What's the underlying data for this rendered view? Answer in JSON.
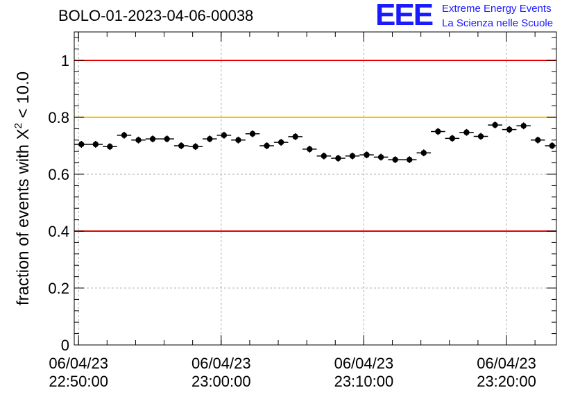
{
  "header": {
    "title": "BOLO-01-2023-04-06-00038"
  },
  "logo": {
    "mark": "EEE",
    "line1": "Extreme Energy Events",
    "line2": "La Scienza nelle Scuole"
  },
  "chart_data": {
    "type": "scatter",
    "ylabel_main": "fraction of events with X",
    "ylabel_sup": "2",
    "ylabel_tail": " < 10.0",
    "ylim": [
      0,
      1.1
    ],
    "xlim_minutes": [
      -0.3,
      33.5
    ],
    "yticks": [
      {
        "value": 0,
        "label": "0"
      },
      {
        "value": 0.2,
        "label": "0.2"
      },
      {
        "value": 0.4,
        "label": "0.4"
      },
      {
        "value": 0.6,
        "label": "0.6"
      },
      {
        "value": 0.8,
        "label": "0.8"
      },
      {
        "value": 1,
        "label": "1"
      }
    ],
    "xticks": [
      {
        "minutes": 0,
        "date": "06/04/23",
        "time": "22:50:00"
      },
      {
        "minutes": 10,
        "date": "06/04/23",
        "time": "23:00:00"
      },
      {
        "minutes": 20,
        "date": "06/04/23",
        "time": "23:10:00"
      },
      {
        "minutes": 30,
        "date": "06/04/23",
        "time": "23:20:00"
      }
    ],
    "grid": true,
    "reference_lines": [
      {
        "value": 1.0,
        "color": "#e00000"
      },
      {
        "value": 0.8,
        "color": "#ffc000"
      },
      {
        "value": 0.4,
        "color": "#e00000"
      }
    ],
    "bin_width_minutes": 1,
    "point_color": "#000000",
    "points": [
      {
        "x": 0.2,
        "y": 0.705,
        "err": 0.012
      },
      {
        "x": 1.2,
        "y": 0.705,
        "err": 0.012
      },
      {
        "x": 2.2,
        "y": 0.697,
        "err": 0.012
      },
      {
        "x": 3.2,
        "y": 0.737,
        "err": 0.012
      },
      {
        "x": 4.2,
        "y": 0.72,
        "err": 0.012
      },
      {
        "x": 5.2,
        "y": 0.724,
        "err": 0.012
      },
      {
        "x": 6.2,
        "y": 0.724,
        "err": 0.012
      },
      {
        "x": 7.2,
        "y": 0.7,
        "err": 0.012
      },
      {
        "x": 8.2,
        "y": 0.697,
        "err": 0.012
      },
      {
        "x": 9.2,
        "y": 0.724,
        "err": 0.012
      },
      {
        "x": 10.2,
        "y": 0.737,
        "err": 0.012
      },
      {
        "x": 11.2,
        "y": 0.72,
        "err": 0.012
      },
      {
        "x": 12.2,
        "y": 0.742,
        "err": 0.012
      },
      {
        "x": 13.2,
        "y": 0.7,
        "err": 0.012
      },
      {
        "x": 14.2,
        "y": 0.712,
        "err": 0.012
      },
      {
        "x": 15.2,
        "y": 0.732,
        "err": 0.012
      },
      {
        "x": 16.2,
        "y": 0.688,
        "err": 0.012
      },
      {
        "x": 17.2,
        "y": 0.664,
        "err": 0.012
      },
      {
        "x": 18.2,
        "y": 0.656,
        "err": 0.012
      },
      {
        "x": 19.2,
        "y": 0.664,
        "err": 0.012
      },
      {
        "x": 20.2,
        "y": 0.668,
        "err": 0.012
      },
      {
        "x": 21.2,
        "y": 0.66,
        "err": 0.012
      },
      {
        "x": 22.2,
        "y": 0.651,
        "err": 0.012
      },
      {
        "x": 23.2,
        "y": 0.651,
        "err": 0.012
      },
      {
        "x": 24.2,
        "y": 0.675,
        "err": 0.012
      },
      {
        "x": 25.2,
        "y": 0.75,
        "err": 0.012
      },
      {
        "x": 26.2,
        "y": 0.726,
        "err": 0.012
      },
      {
        "x": 27.2,
        "y": 0.747,
        "err": 0.012
      },
      {
        "x": 28.2,
        "y": 0.733,
        "err": 0.012
      },
      {
        "x": 29.2,
        "y": 0.773,
        "err": 0.012
      },
      {
        "x": 30.2,
        "y": 0.757,
        "err": 0.012
      },
      {
        "x": 31.2,
        "y": 0.77,
        "err": 0.012
      },
      {
        "x": 32.2,
        "y": 0.72,
        "err": 0.012
      },
      {
        "x": 33.2,
        "y": 0.7,
        "err": 0.012
      }
    ]
  }
}
